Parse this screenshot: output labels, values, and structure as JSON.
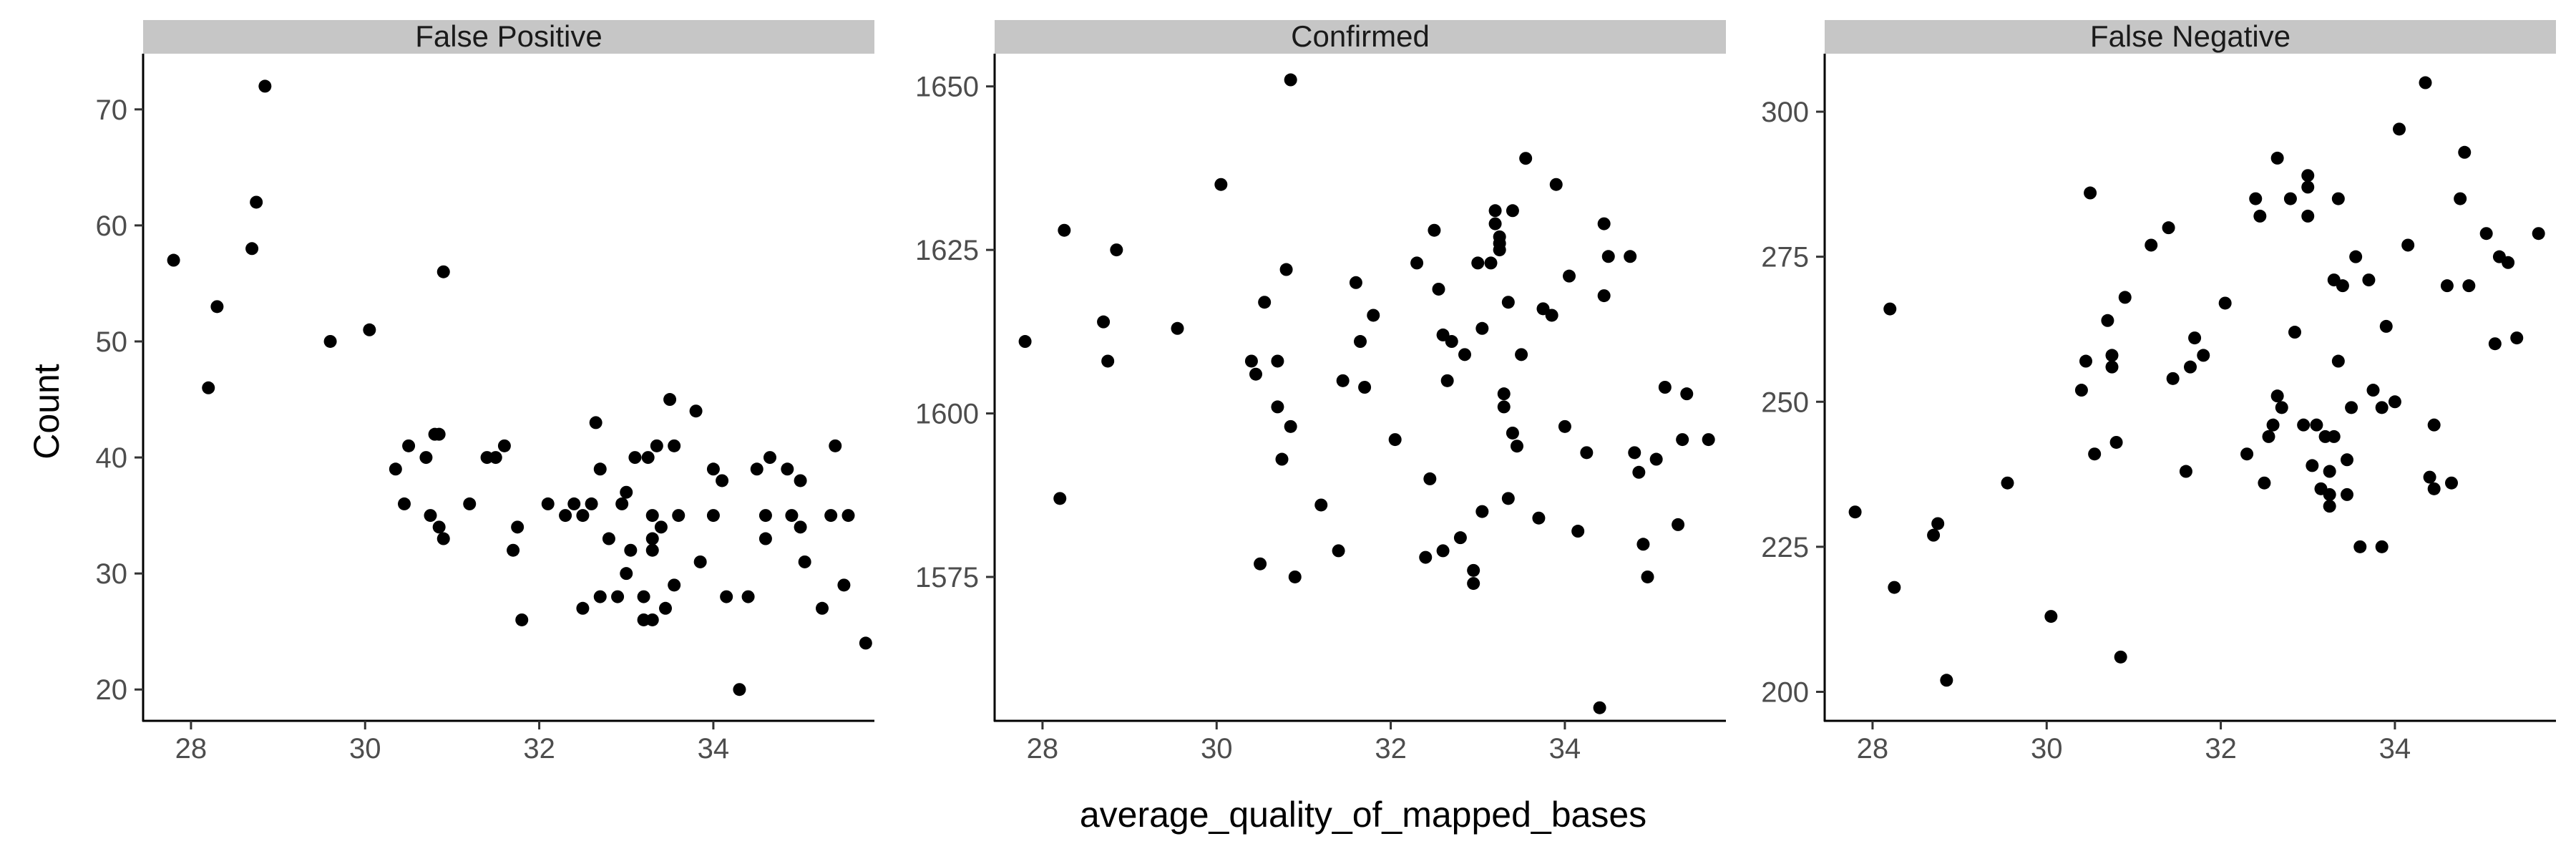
{
  "chart_data": {
    "type": "scatter",
    "xlabel": "average_quality_of_mapped_bases",
    "ylabel": "Count",
    "xlim": [
      27.45,
      35.85
    ],
    "x_ticks": [
      28,
      30,
      32,
      34
    ],
    "x_tick_labels": [
      "28",
      "30",
      "32",
      "34"
    ],
    "grid": false,
    "point_color": "#000000",
    "strip_color": "#c6c6c6",
    "panels": [
      {
        "title": "False Positive",
        "ylim": [
          17.3,
          74.8
        ],
        "y_ticks": [
          20,
          30,
          40,
          50,
          60,
          70
        ],
        "y_tick_labels": [
          "20",
          "30",
          "40",
          "50",
          "60",
          "70"
        ],
        "points": [
          [
            27.8,
            57
          ],
          [
            28.2,
            46
          ],
          [
            28.3,
            53
          ],
          [
            28.7,
            58
          ],
          [
            28.75,
            62
          ],
          [
            28.85,
            72
          ],
          [
            29.6,
            50
          ],
          [
            30.05,
            51
          ],
          [
            30.35,
            39
          ],
          [
            30.45,
            36
          ],
          [
            30.5,
            41
          ],
          [
            30.7,
            40
          ],
          [
            30.75,
            35
          ],
          [
            30.8,
            42
          ],
          [
            30.85,
            34
          ],
          [
            30.9,
            33
          ],
          [
            30.85,
            42
          ],
          [
            30.9,
            56
          ],
          [
            31.2,
            36
          ],
          [
            31.4,
            40
          ],
          [
            31.5,
            40
          ],
          [
            31.6,
            41
          ],
          [
            31.7,
            32
          ],
          [
            31.75,
            34
          ],
          [
            31.8,
            26
          ],
          [
            32.1,
            36
          ],
          [
            32.3,
            35
          ],
          [
            32.4,
            36
          ],
          [
            32.5,
            27
          ],
          [
            32.5,
            35
          ],
          [
            32.6,
            36
          ],
          [
            32.65,
            43
          ],
          [
            32.7,
            28
          ],
          [
            32.7,
            39
          ],
          [
            32.8,
            33
          ],
          [
            32.9,
            28
          ],
          [
            32.95,
            36
          ],
          [
            33.0,
            30
          ],
          [
            33.05,
            32
          ],
          [
            33.0,
            37
          ],
          [
            33.1,
            40
          ],
          [
            33.2,
            26
          ],
          [
            33.25,
            40
          ],
          [
            33.3,
            26
          ],
          [
            33.2,
            28
          ],
          [
            33.3,
            33
          ],
          [
            33.3,
            35
          ],
          [
            33.3,
            32
          ],
          [
            33.35,
            41
          ],
          [
            33.4,
            34
          ],
          [
            33.45,
            27
          ],
          [
            33.5,
            45
          ],
          [
            33.55,
            29
          ],
          [
            33.55,
            41
          ],
          [
            33.6,
            35
          ],
          [
            33.8,
            44
          ],
          [
            33.85,
            31
          ],
          [
            34.0,
            39
          ],
          [
            34.0,
            35
          ],
          [
            34.1,
            38
          ],
          [
            34.15,
            28
          ],
          [
            34.3,
            20
          ],
          [
            34.4,
            28
          ],
          [
            34.5,
            39
          ],
          [
            34.6,
            33
          ],
          [
            34.6,
            35
          ],
          [
            34.65,
            40
          ],
          [
            34.85,
            39
          ],
          [
            34.9,
            35
          ],
          [
            35.0,
            38
          ],
          [
            35.0,
            34
          ],
          [
            35.05,
            31
          ],
          [
            35.25,
            27
          ],
          [
            35.35,
            35
          ],
          [
            35.4,
            41
          ],
          [
            35.5,
            29
          ],
          [
            35.55,
            35
          ],
          [
            35.75,
            24
          ]
        ]
      },
      {
        "title": "Confirmed",
        "ylim": [
          1553,
          1655
        ],
        "y_ticks": [
          1575,
          1600,
          1625,
          1650
        ],
        "y_tick_labels": [
          "1575",
          "1600",
          "1625",
          "1650"
        ],
        "points": [
          [
            27.8,
            1611
          ],
          [
            28.2,
            1587
          ],
          [
            28.25,
            1628
          ],
          [
            28.7,
            1614
          ],
          [
            28.75,
            1608
          ],
          [
            28.85,
            1625
          ],
          [
            29.55,
            1613
          ],
          [
            30.05,
            1635
          ],
          [
            30.4,
            1608
          ],
          [
            30.45,
            1606
          ],
          [
            30.5,
            1577
          ],
          [
            30.55,
            1617
          ],
          [
            30.7,
            1601
          ],
          [
            30.7,
            1608
          ],
          [
            30.75,
            1593
          ],
          [
            30.8,
            1622
          ],
          [
            30.85,
            1598
          ],
          [
            30.9,
            1575
          ],
          [
            30.85,
            1651
          ],
          [
            31.2,
            1586
          ],
          [
            31.4,
            1579
          ],
          [
            31.45,
            1605
          ],
          [
            31.6,
            1620
          ],
          [
            31.65,
            1611
          ],
          [
            31.7,
            1604
          ],
          [
            31.8,
            1615
          ],
          [
            32.05,
            1596
          ],
          [
            32.3,
            1623
          ],
          [
            32.4,
            1578
          ],
          [
            32.45,
            1590
          ],
          [
            32.5,
            1628
          ],
          [
            32.55,
            1619
          ],
          [
            32.6,
            1612
          ],
          [
            32.65,
            1605
          ],
          [
            32.6,
            1579
          ],
          [
            32.7,
            1611
          ],
          [
            32.8,
            1581
          ],
          [
            32.85,
            1609
          ],
          [
            32.95,
            1576
          ],
          [
            32.95,
            1574
          ],
          [
            33.0,
            1623
          ],
          [
            33.05,
            1585
          ],
          [
            33.05,
            1613
          ],
          [
            33.15,
            1623
          ],
          [
            33.2,
            1629
          ],
          [
            33.2,
            1631
          ],
          [
            33.25,
            1626
          ],
          [
            33.25,
            1627
          ],
          [
            33.25,
            1625
          ],
          [
            33.3,
            1601
          ],
          [
            33.3,
            1603
          ],
          [
            33.35,
            1617
          ],
          [
            33.35,
            1587
          ],
          [
            33.4,
            1631
          ],
          [
            33.4,
            1597
          ],
          [
            33.45,
            1595
          ],
          [
            33.5,
            1609
          ],
          [
            33.55,
            1639
          ],
          [
            33.7,
            1584
          ],
          [
            33.75,
            1616
          ],
          [
            33.85,
            1615
          ],
          [
            33.9,
            1635
          ],
          [
            34.0,
            1598
          ],
          [
            34.05,
            1621
          ],
          [
            34.15,
            1582
          ],
          [
            34.25,
            1594
          ],
          [
            34.4,
            1555
          ],
          [
            34.45,
            1629
          ],
          [
            34.5,
            1624
          ],
          [
            34.45,
            1618
          ],
          [
            34.75,
            1624
          ],
          [
            34.8,
            1594
          ],
          [
            34.85,
            1591
          ],
          [
            34.9,
            1580
          ],
          [
            34.95,
            1575
          ],
          [
            35.05,
            1593
          ],
          [
            35.15,
            1604
          ],
          [
            35.3,
            1583
          ],
          [
            35.35,
            1596
          ],
          [
            35.4,
            1603
          ],
          [
            35.65,
            1596
          ]
        ]
      },
      {
        "title": "False Negative",
        "ylim": [
          195,
          310
        ],
        "y_ticks": [
          200,
          225,
          250,
          275,
          300
        ],
        "y_tick_labels": [
          "200",
          "225",
          "250",
          "275",
          "300"
        ],
        "points": [
          [
            27.8,
            231
          ],
          [
            28.2,
            266
          ],
          [
            28.25,
            218
          ],
          [
            28.7,
            227
          ],
          [
            28.75,
            229
          ],
          [
            28.85,
            202
          ],
          [
            29.55,
            236
          ],
          [
            30.05,
            213
          ],
          [
            30.4,
            252
          ],
          [
            30.45,
            257
          ],
          [
            30.5,
            286
          ],
          [
            30.55,
            241
          ],
          [
            30.7,
            264
          ],
          [
            30.75,
            258
          ],
          [
            30.75,
            256
          ],
          [
            30.8,
            243
          ],
          [
            30.85,
            206
          ],
          [
            30.9,
            268
          ],
          [
            31.2,
            277
          ],
          [
            31.4,
            280
          ],
          [
            31.45,
            254
          ],
          [
            31.6,
            238
          ],
          [
            31.65,
            256
          ],
          [
            31.7,
            261
          ],
          [
            31.8,
            258
          ],
          [
            32.05,
            267
          ],
          [
            32.3,
            241
          ],
          [
            32.4,
            285
          ],
          [
            32.45,
            282
          ],
          [
            32.5,
            236
          ],
          [
            32.55,
            244
          ],
          [
            32.6,
            246
          ],
          [
            32.65,
            292
          ],
          [
            32.65,
            251
          ],
          [
            32.7,
            249
          ],
          [
            32.8,
            285
          ],
          [
            32.85,
            262
          ],
          [
            32.95,
            246
          ],
          [
            33.0,
            289
          ],
          [
            33.0,
            287
          ],
          [
            33.0,
            282
          ],
          [
            33.05,
            239
          ],
          [
            33.1,
            246
          ],
          [
            33.15,
            235
          ],
          [
            33.2,
            244
          ],
          [
            33.25,
            232
          ],
          [
            33.25,
            234
          ],
          [
            33.25,
            238
          ],
          [
            33.3,
            244
          ],
          [
            33.3,
            271
          ],
          [
            33.35,
            285
          ],
          [
            33.35,
            257
          ],
          [
            33.4,
            270
          ],
          [
            33.45,
            240
          ],
          [
            33.45,
            234
          ],
          [
            33.5,
            249
          ],
          [
            33.55,
            275
          ],
          [
            33.6,
            225
          ],
          [
            33.7,
            271
          ],
          [
            33.75,
            252
          ],
          [
            33.85,
            249
          ],
          [
            33.85,
            225
          ],
          [
            33.9,
            263
          ],
          [
            34.0,
            250
          ],
          [
            34.05,
            297
          ],
          [
            34.15,
            277
          ],
          [
            34.35,
            305
          ],
          [
            34.4,
            237
          ],
          [
            34.45,
            246
          ],
          [
            34.45,
            235
          ],
          [
            34.6,
            270
          ],
          [
            34.65,
            236
          ],
          [
            34.75,
            285
          ],
          [
            34.8,
            293
          ],
          [
            34.85,
            270
          ],
          [
            35.05,
            279
          ],
          [
            35.15,
            260
          ],
          [
            35.2,
            275
          ],
          [
            35.3,
            274
          ],
          [
            35.4,
            261
          ],
          [
            35.65,
            279
          ]
        ]
      }
    ]
  }
}
